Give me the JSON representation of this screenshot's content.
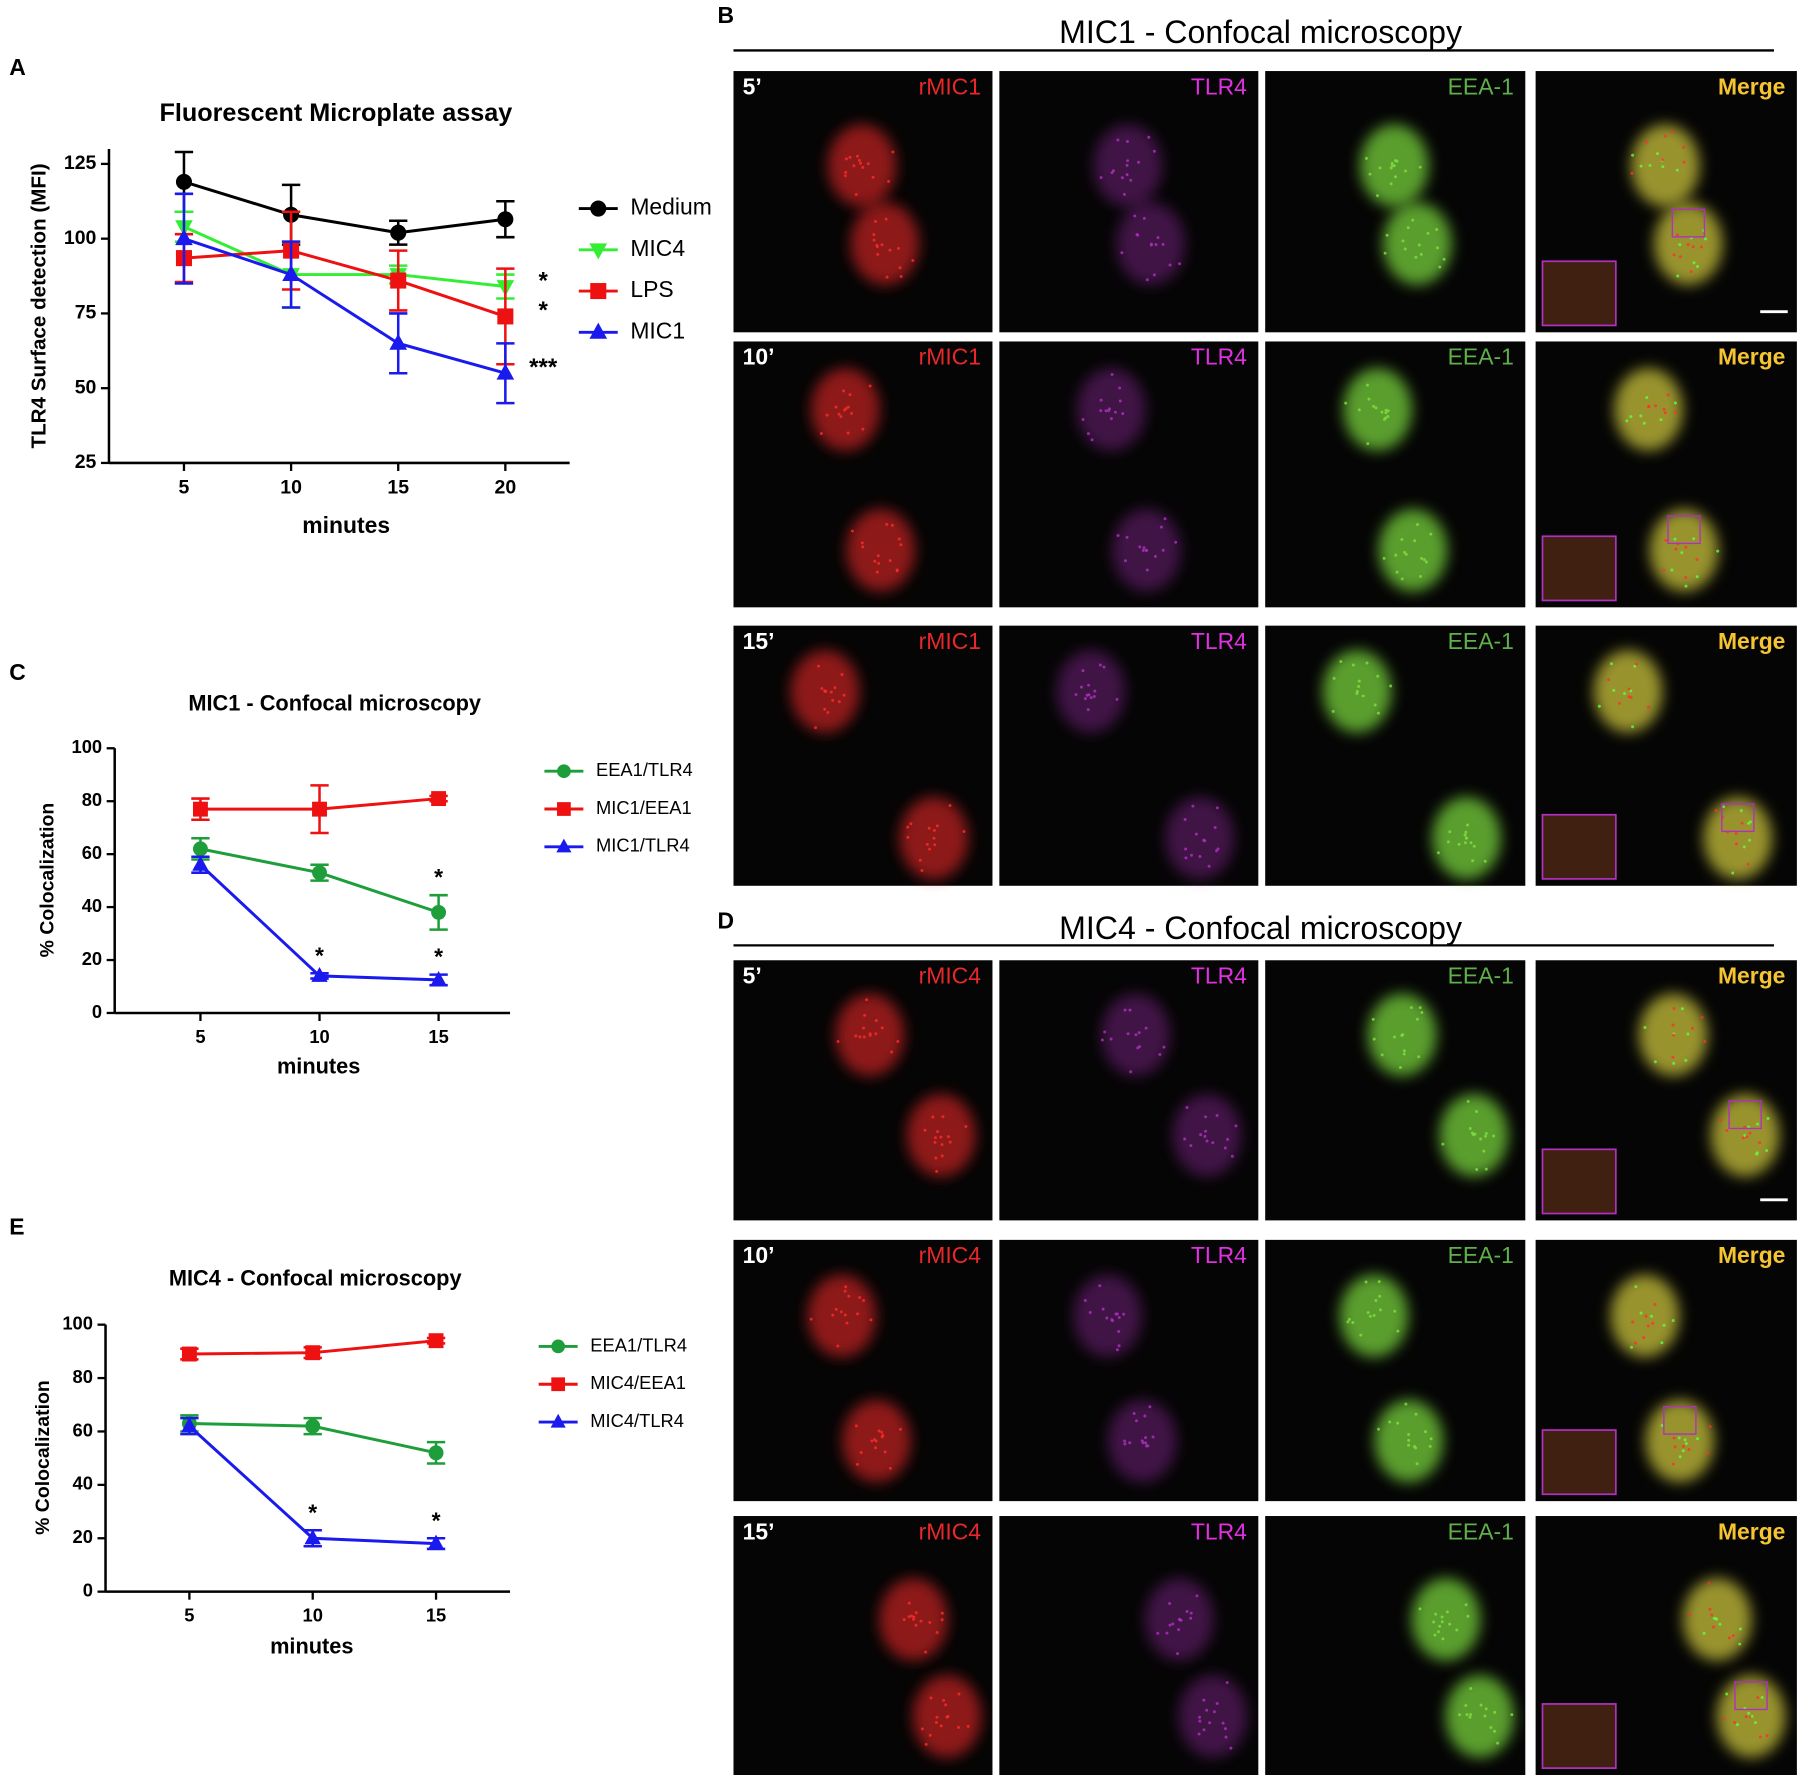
{
  "panel_letters": [
    "A",
    "B",
    "C",
    "D",
    "E"
  ],
  "chart_data": [
    {
      "type": "line",
      "title": "Fluorescent Microplate assay",
      "ylabel": "TLR4 Surface detection (MFI)",
      "xlabel": "minutes",
      "x": [
        5,
        10,
        15,
        20
      ],
      "xlim": [
        1.5,
        23
      ],
      "xticks": [
        5,
        10,
        15,
        20
      ],
      "ylim": [
        25,
        130
      ],
      "yticks": [
        25,
        50,
        75,
        100,
        125
      ],
      "series": [
        {
          "name": "Medium",
          "color": "#000000",
          "marker": "circle",
          "values": [
            119,
            108,
            102,
            106.5
          ],
          "errors": [
            10,
            10,
            4,
            6
          ]
        },
        {
          "name": "MIC4",
          "color": "#33ee33",
          "marker": "triangle-down",
          "values": [
            104,
            88,
            88,
            84
          ],
          "errors": [
            5,
            11,
            3,
            4
          ],
          "stars": [
            null,
            null,
            null,
            "*"
          ]
        },
        {
          "name": "LPS",
          "color": "#ee1111",
          "marker": "square",
          "values": [
            93.5,
            96,
            86,
            74
          ],
          "errors": [
            8,
            13,
            10,
            16
          ],
          "stars": [
            null,
            null,
            null,
            "*"
          ]
        },
        {
          "name": "MIC1",
          "color": "#1a1aee",
          "marker": "triangle-up",
          "values": [
            100,
            88,
            65,
            55
          ],
          "errors": [
            15,
            11,
            10,
            10
          ],
          "stars": [
            null,
            null,
            null,
            "***"
          ]
        }
      ]
    },
    {
      "type": "line",
      "title": "MIC1 - Confocal microscopy",
      "ylabel": "% Colocalization",
      "xlabel": "minutes",
      "x": [
        5,
        10,
        15
      ],
      "xlim": [
        1.4,
        18
      ],
      "xticks": [
        5,
        10,
        15
      ],
      "ylim": [
        0,
        100
      ],
      "yticks": [
        0,
        20,
        40,
        60,
        80,
        100
      ],
      "series": [
        {
          "name": "EEA1/TLR4",
          "color": "#1e9e3a",
          "marker": "circle",
          "values": [
            62,
            53,
            38
          ],
          "errors": [
            4,
            3,
            6.5
          ],
          "stars": [
            null,
            null,
            "*"
          ]
        },
        {
          "name": "MIC1/EEA1",
          "color": "#ee1111",
          "marker": "square",
          "values": [
            77,
            77,
            81
          ],
          "errors": [
            4,
            9,
            1
          ]
        },
        {
          "name": "MIC1/TLR4",
          "color": "#1a1aee",
          "marker": "triangle-up",
          "values": [
            56,
            14,
            12.5
          ],
          "errors": [
            3,
            1,
            2
          ],
          "stars": [
            null,
            "*",
            "*"
          ]
        }
      ]
    },
    {
      "type": "line",
      "title": "MIC4 - Confocal microscopy",
      "ylabel": "% Colocalization",
      "xlabel": "minutes",
      "x": [
        5,
        10,
        15
      ],
      "xlim": [
        1.6,
        18
      ],
      "xticks": [
        5,
        10,
        15
      ],
      "ylim": [
        0,
        100
      ],
      "yticks": [
        0,
        20,
        40,
        60,
        80,
        100
      ],
      "series": [
        {
          "name": "EEA1/TLR4",
          "color": "#1e9e3a",
          "marker": "circle",
          "values": [
            63,
            62,
            52
          ],
          "errors": [
            3,
            3,
            4
          ]
        },
        {
          "name": "MIC4/EEA1",
          "color": "#ee1111",
          "marker": "square",
          "values": [
            89,
            89.5,
            94
          ],
          "errors": [
            2,
            2,
            1
          ]
        },
        {
          "name": "MIC4/TLR4",
          "color": "#1a1aee",
          "marker": "triangle-up",
          "values": [
            62,
            20,
            18
          ],
          "errors": [
            3,
            3,
            2
          ],
          "stars": [
            null,
            "*",
            "*"
          ]
        }
      ]
    }
  ],
  "microscopy": [
    {
      "title": "MIC1 - Confocal microscopy",
      "rows": [
        {
          "time": "5’",
          "channels": [
            "rMIC1",
            "TLR4",
            "EEA-1",
            "Merge"
          ]
        },
        {
          "time": "10’",
          "channels": [
            "rMIC1",
            "TLR4",
            "EEA-1",
            "Merge"
          ]
        },
        {
          "time": "15’",
          "channels": [
            "rMIC1",
            "TLR4",
            "EEA-1",
            "Merge"
          ]
        }
      ]
    },
    {
      "title": "MIC4 - Confocal microscopy",
      "rows": [
        {
          "time": "5’",
          "channels": [
            "rMIC4",
            "TLR4",
            "EEA-1",
            "Merge"
          ]
        },
        {
          "time": "10’",
          "channels": [
            "rMIC4",
            "TLR4",
            "EEA-1",
            "Merge"
          ]
        },
        {
          "time": "15’",
          "channels": [
            "rMIC4",
            "TLR4",
            "EEA-1",
            "Merge"
          ]
        }
      ]
    }
  ]
}
